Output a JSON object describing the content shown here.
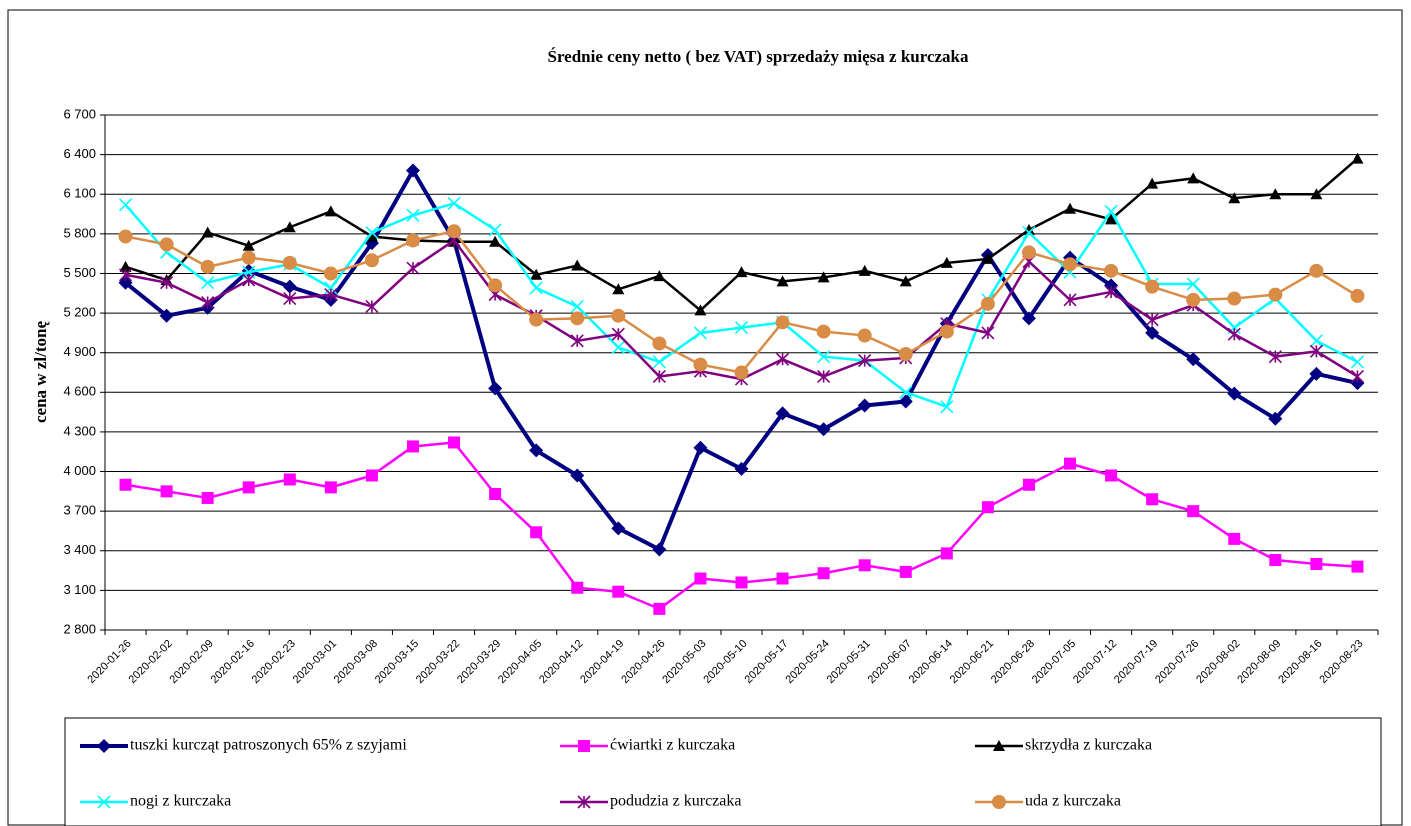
{
  "chart_data": {
    "type": "line",
    "title": "Średnie ceny netto ( bez VAT) sprzedaży mięsa z kurczaka",
    "y_label": "cena w zl/tonę",
    "categories": [
      "2020-01-26",
      "2020-02-02",
      "2020-02-09",
      "2020-02-16",
      "2020-02-23",
      "2020-03-01",
      "2020-03-08",
      "2020-03-15",
      "2020-03-22",
      "2020-03-29",
      "2020-04-05",
      "2020-04-12",
      "2020-04-19",
      "2020-04-26",
      "2020-05-03",
      "2020-05-10",
      "2020-05-17",
      "2020-05-24",
      "2020-05-31",
      "2020-06-07",
      "2020-06-14",
      "2020-06-21",
      "2020-06-28",
      "2020-07-05",
      "2020-07-12",
      "2020-07-19",
      "2020-07-26",
      "2020-08-02",
      "2020-08-09",
      "2020-08-16",
      "2020-08-23"
    ],
    "ylim": [
      2800,
      6700
    ],
    "yticks": [
      {
        "value": 2800,
        "label": "2 800"
      },
      {
        "value": 3100,
        "label": "3 100"
      },
      {
        "value": 3400,
        "label": "3 400"
      },
      {
        "value": 3700,
        "label": "3 700"
      },
      {
        "value": 4000,
        "label": "4 000"
      },
      {
        "value": 4300,
        "label": "4 300"
      },
      {
        "value": 4600,
        "label": "4 600"
      },
      {
        "value": 4900,
        "label": "4 900"
      },
      {
        "value": 5200,
        "label": "5 200"
      },
      {
        "value": 5500,
        "label": "5 500"
      },
      {
        "value": 5800,
        "label": "5 800"
      },
      {
        "value": 6100,
        "label": "6 100"
      },
      {
        "value": 6400,
        "label": "6 400"
      },
      {
        "value": 6700,
        "label": "6 700"
      }
    ],
    "grid": true,
    "series": [
      {
        "name": "tuszki kurcząt patroszonych 65% z szyjami",
        "color": "#000080",
        "marker": "diamond",
        "values": [
          5430,
          5180,
          5240,
          5520,
          5400,
          5300,
          5730,
          6280,
          5750,
          4630,
          4160,
          3970,
          3570,
          3410,
          4180,
          4020,
          4440,
          4320,
          4500,
          4530,
          5120,
          5640,
          5160,
          5620,
          5410,
          5050,
          4850,
          4590,
          4400,
          4740,
          4670
        ]
      },
      {
        "name": "ćwiartki z kurczaka",
        "color": "#ff00ff",
        "marker": "square",
        "values": [
          3900,
          3850,
          3800,
          3880,
          3940,
          3880,
          3970,
          4190,
          4220,
          3830,
          3540,
          3120,
          3090,
          2960,
          3190,
          3160,
          3190,
          3230,
          3290,
          3240,
          3380,
          3730,
          3900,
          4060,
          3970,
          3790,
          3700,
          3490,
          3330,
          3300,
          3280
        ]
      },
      {
        "name": "skrzydła z kurczaka",
        "color": "#000000",
        "marker": "triangle",
        "values": [
          5550,
          5450,
          5810,
          5710,
          5850,
          5970,
          5780,
          5750,
          5740,
          5740,
          5490,
          5560,
          5380,
          5480,
          5220,
          5510,
          5440,
          5470,
          5520,
          5440,
          5580,
          5610,
          5830,
          5990,
          5910,
          6180,
          6220,
          6070,
          6100,
          6100,
          6370
        ]
      },
      {
        "name": "nogi z kurczaka",
        "color": "#00ffff",
        "marker": "x",
        "values": [
          6020,
          5660,
          5430,
          5510,
          5570,
          5390,
          5810,
          5940,
          6030,
          5830,
          5390,
          5250,
          4940,
          4830,
          5050,
          5090,
          5130,
          4870,
          4840,
          4600,
          4490,
          5300,
          5810,
          5510,
          5970,
          5420,
          5420,
          5090,
          5310,
          4990,
          4830
        ]
      },
      {
        "name": "podudzia z kurczaka",
        "color": "#800080",
        "marker": "star",
        "values": [
          5490,
          5430,
          5280,
          5450,
          5310,
          5340,
          5250,
          5540,
          5750,
          5340,
          5180,
          4990,
          5040,
          4720,
          4760,
          4700,
          4850,
          4720,
          4840,
          4860,
          5120,
          5050,
          5590,
          5300,
          5360,
          5150,
          5260,
          5040,
          4870,
          4910,
          4720
        ]
      },
      {
        "name": "uda z kurczaka",
        "color": "#d98c46",
        "marker": "circle",
        "values": [
          5780,
          5720,
          5550,
          5620,
          5580,
          5500,
          5600,
          5750,
          5820,
          5410,
          5150,
          5160,
          5180,
          4970,
          4810,
          4750,
          5130,
          5060,
          5030,
          4890,
          5060,
          5270,
          5660,
          5570,
          5520,
          5400,
          5300,
          5310,
          5340,
          5520,
          5330
        ]
      }
    ]
  }
}
